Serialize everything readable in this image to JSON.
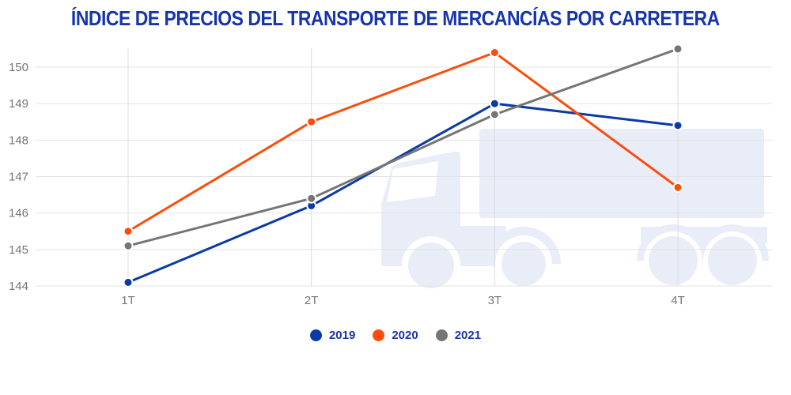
{
  "chart_data": {
    "type": "line",
    "title": "ÍNDICE DE PRECIOS DEL TRANSPORTE DE MERCANCÍAS POR CARRETERA",
    "title_color": "#1634AD",
    "legend_text_color": "#1A34A8",
    "axis_label_color": "#757575",
    "gridline_color": "#E3E3E3",
    "watermark_icon": "truck-icon",
    "watermark_color": "#E9EDF8",
    "categories": [
      "1T",
      "2T",
      "3T",
      "4T"
    ],
    "series": [
      {
        "name": "2019",
        "color": "#0A3AA5",
        "values": [
          144.1,
          146.2,
          149.0,
          148.4
        ]
      },
      {
        "name": "2020",
        "color": "#FB4D0C",
        "values": [
          145.5,
          148.5,
          150.4,
          146.7
        ]
      },
      {
        "name": "2021",
        "color": "#757575",
        "values": [
          145.1,
          146.4,
          148.7,
          150.5
        ]
      }
    ],
    "yticks": [
      144,
      145,
      146,
      147,
      148,
      149,
      150
    ],
    "ylim": [
      144,
      150.6
    ],
    "xlabel": "",
    "ylabel": "",
    "grid": true,
    "legend_position": "bottom"
  }
}
